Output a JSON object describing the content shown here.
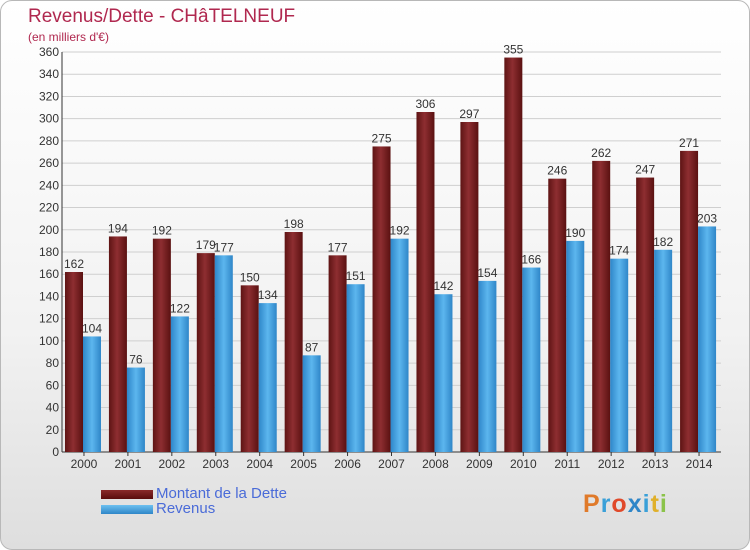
{
  "title": "Revenus/Dette - CHâTELNEUF",
  "subtitle": "(en milliers d'€)",
  "logo": "Proxiti",
  "colors": {
    "dette": "#7a1f24",
    "revenus": "#4da6e0",
    "title": "#b0284f",
    "legend_text": "#4a6bd8"
  },
  "legend": [
    {
      "label": "Montant de la Dette",
      "color": "#6b1010"
    },
    {
      "label": "Revenus",
      "color": "#4da6e0"
    }
  ],
  "chart_data": {
    "type": "bar",
    "title": "Revenus/Dette - CHâTELNEUF",
    "subtitle": "(en milliers d'€)",
    "categories": [
      "2000",
      "2001",
      "2002",
      "2003",
      "2004",
      "2005",
      "2006",
      "2007",
      "2008",
      "2009",
      "2010",
      "2011",
      "2012",
      "2013",
      "2014"
    ],
    "series": [
      {
        "name": "Montant de la Dette",
        "values": [
          162,
          194,
          192,
          179,
          150,
          198,
          177,
          275,
          306,
          297,
          355,
          246,
          262,
          247,
          271
        ]
      },
      {
        "name": "Revenus",
        "values": [
          104,
          76,
          122,
          177,
          134,
          87,
          151,
          192,
          142,
          154,
          166,
          190,
          174,
          182,
          203
        ]
      }
    ],
    "ylim": [
      0,
      360
    ],
    "ytick_step": 20,
    "grid": true,
    "legend_position": "bottom-left"
  }
}
